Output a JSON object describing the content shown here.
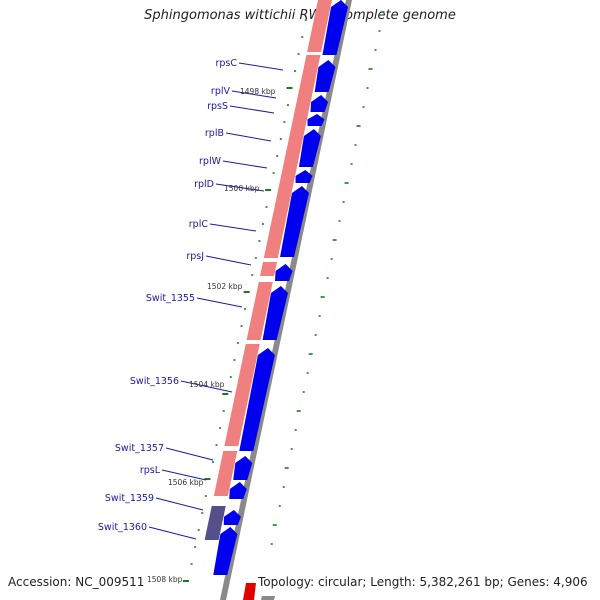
{
  "title": "Sphingomonas wittichii RW1, complete genome",
  "footer": {
    "accession": "Accession: NC_009511",
    "info": "Topology: circular; Length: 5,382,261 bp; Genes: 4,906"
  },
  "colors": {
    "cds": "#0000ee",
    "rna": "#f08080",
    "rna_dark": "#55508c",
    "backbone": "#8a8a8a",
    "tick": "#1e7a1e",
    "label": "#1a1aa8"
  },
  "gene_labels": [
    "rpsC",
    "rplV",
    "rpsS",
    "rplB",
    "rplW",
    "rplD",
    "rplC",
    "rpsJ",
    "Swit_1355",
    "Swit_1356",
    "Swit_1357",
    "rpsL",
    "Swit_1359",
    "Swit_1360"
  ],
  "kbp_labels": [
    "1498 kbp",
    "1500 kbp",
    "1502 kbp",
    "1504 kbp",
    "1506 kbp",
    "1508 kbp"
  ]
}
